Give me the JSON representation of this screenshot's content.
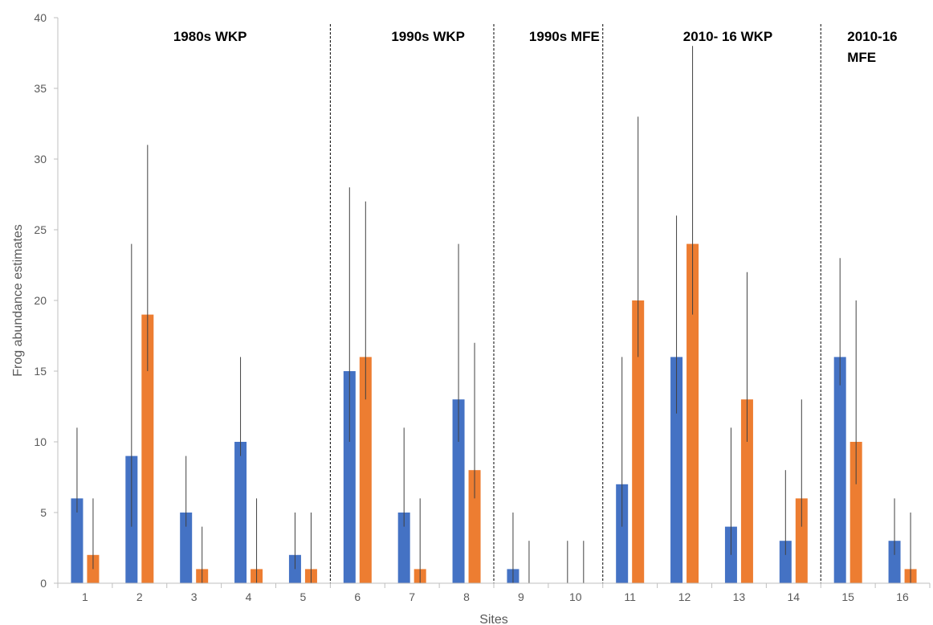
{
  "chart_data": {
    "type": "bar",
    "xlabel": "Sites",
    "ylabel": "Frog abundance estimates",
    "ylim": [
      0,
      40
    ],
    "yticks": [
      0,
      5,
      10,
      15,
      20,
      25,
      30,
      35,
      40
    ],
    "grid": false,
    "legend": "none",
    "categories": [
      "1",
      "2",
      "3",
      "4",
      "5",
      "6",
      "7",
      "8",
      "9",
      "10",
      "11",
      "12",
      "13",
      "14",
      "15",
      "16"
    ],
    "series": [
      {
        "color": "#4472C4",
        "values": [
          6,
          9,
          5,
          10,
          2,
          15,
          5,
          13,
          1,
          0,
          7,
          16,
          4,
          3,
          16,
          3
        ],
        "err_low": [
          5,
          4,
          4,
          9,
          1,
          10,
          4,
          10,
          0,
          0,
          4,
          12,
          2,
          2,
          14,
          2
        ],
        "err_high": [
          11,
          24,
          9,
          16,
          5,
          28,
          11,
          24,
          5,
          3,
          16,
          26,
          11,
          8,
          23,
          6
        ]
      },
      {
        "color": "#ED7D31",
        "values": [
          2,
          19,
          1,
          1,
          1,
          16,
          1,
          8,
          0,
          0,
          20,
          24,
          13,
          6,
          10,
          1
        ],
        "err_low": [
          1,
          15,
          0,
          0,
          0,
          13,
          0,
          6,
          0,
          0,
          16,
          19,
          10,
          4,
          7,
          0
        ],
        "err_high": [
          6,
          31,
          4,
          6,
          5,
          27,
          6,
          17,
          3,
          3,
          33,
          38,
          22,
          13,
          20,
          5
        ]
      }
    ],
    "period_dividers_after": [
      5,
      8,
      10,
      14
    ],
    "period_labels": [
      {
        "lines": [
          "1980s WKP"
        ],
        "sites": [
          1,
          5
        ]
      },
      {
        "lines": [
          "1990s WKP"
        ],
        "sites": [
          6,
          8
        ]
      },
      {
        "lines": [
          "1990s MFE"
        ],
        "sites": [
          9,
          10
        ]
      },
      {
        "lines": [
          "2010- 16 WKP"
        ],
        "sites": [
          11,
          14
        ]
      },
      {
        "lines": [
          "2010-16",
          "MFE"
        ],
        "sites": [
          15,
          16
        ]
      }
    ]
  }
}
